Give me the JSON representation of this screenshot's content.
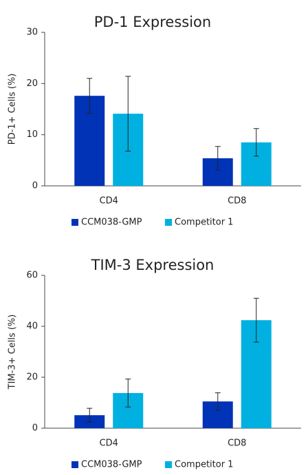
{
  "chart_data": [
    {
      "type": "bar",
      "title": "PD-1 Expression",
      "y_label": "PD-1+ Cells (%)",
      "categories": [
        "CD4",
        "CD8"
      ],
      "series": [
        {
          "name": "CCM038-GMP",
          "color": "#0033b5",
          "values": [
            17.6,
            5.4
          ],
          "errors": [
            3.4,
            2.3
          ]
        },
        {
          "name": "Competitor 1",
          "color": "#00b0e0",
          "values": [
            14.1,
            8.5
          ],
          "errors": [
            7.3,
            2.7
          ]
        }
      ],
      "ylim": [
        0,
        30
      ],
      "yticks": [
        0,
        10,
        20,
        30
      ],
      "legend": "bottom"
    },
    {
      "type": "bar",
      "title": "TIM-3 Expression",
      "y_label": "TIM-3+ Cells (%)",
      "categories": [
        "CD4",
        "CD8"
      ],
      "series": [
        {
          "name": "CCM038-GMP",
          "color": "#0033b5",
          "values": [
            5.1,
            10.5
          ],
          "errors": [
            2.7,
            3.4
          ]
        },
        {
          "name": "Competitor 1",
          "color": "#00b0e0",
          "values": [
            13.8,
            42.4
          ],
          "errors": [
            5.5,
            8.6
          ]
        }
      ],
      "ylim": [
        0,
        60
      ],
      "yticks": [
        0,
        20,
        40,
        60
      ],
      "legend": "bottom"
    }
  ]
}
